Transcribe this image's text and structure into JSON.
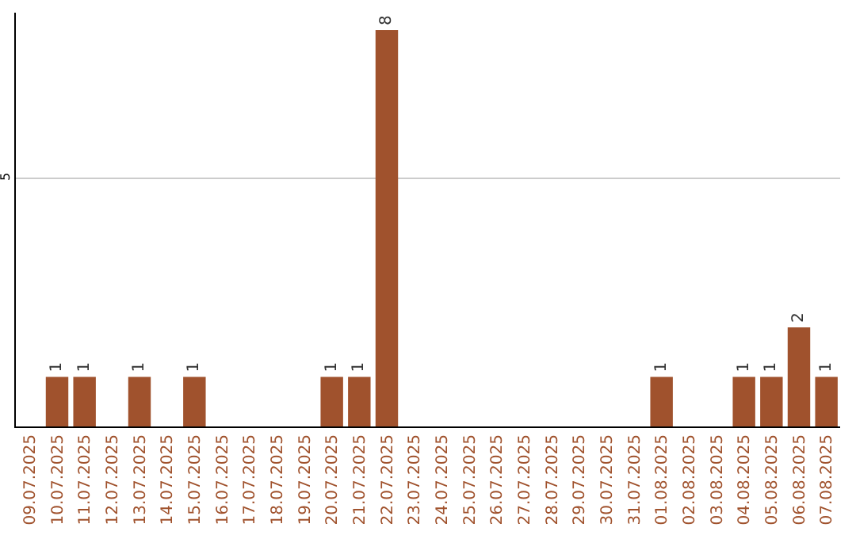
{
  "chart_data": {
    "type": "bar",
    "categories": [
      "09.07.2025",
      "10.07.2025",
      "11.07.2025",
      "12.07.2025",
      "13.07.2025",
      "14.07.2025",
      "15.07.2025",
      "16.07.2025",
      "17.07.2025",
      "18.07.2025",
      "19.07.2025",
      "20.07.2025",
      "21.07.2025",
      "22.07.2025",
      "23.07.2025",
      "24.07.2025",
      "25.07.2025",
      "26.07.2025",
      "27.07.2025",
      "28.07.2025",
      "29.07.2025",
      "30.07.2025",
      "31.07.2025",
      "01.08.2025",
      "02.08.2025",
      "03.08.2025",
      "04.08.2025",
      "05.08.2025",
      "06.08.2025",
      "07.08.2025"
    ],
    "values": [
      0,
      1,
      1,
      0,
      1,
      0,
      1,
      0,
      0,
      0,
      0,
      1,
      1,
      8,
      0,
      0,
      0,
      0,
      0,
      0,
      0,
      0,
      0,
      1,
      0,
      0,
      1,
      1,
      2,
      1
    ],
    "value_labels": [
      null,
      "1",
      "1",
      null,
      "1",
      null,
      "1",
      null,
      null,
      null,
      null,
      "1",
      "1",
      "8",
      null,
      null,
      null,
      null,
      null,
      null,
      null,
      null,
      null,
      "1",
      null,
      null,
      "1",
      "1",
      "2",
      "1"
    ],
    "color": "#a0522d",
    "ylim": [
      0,
      8.35
    ],
    "yticks": [
      5
    ],
    "grid": "y"
  }
}
